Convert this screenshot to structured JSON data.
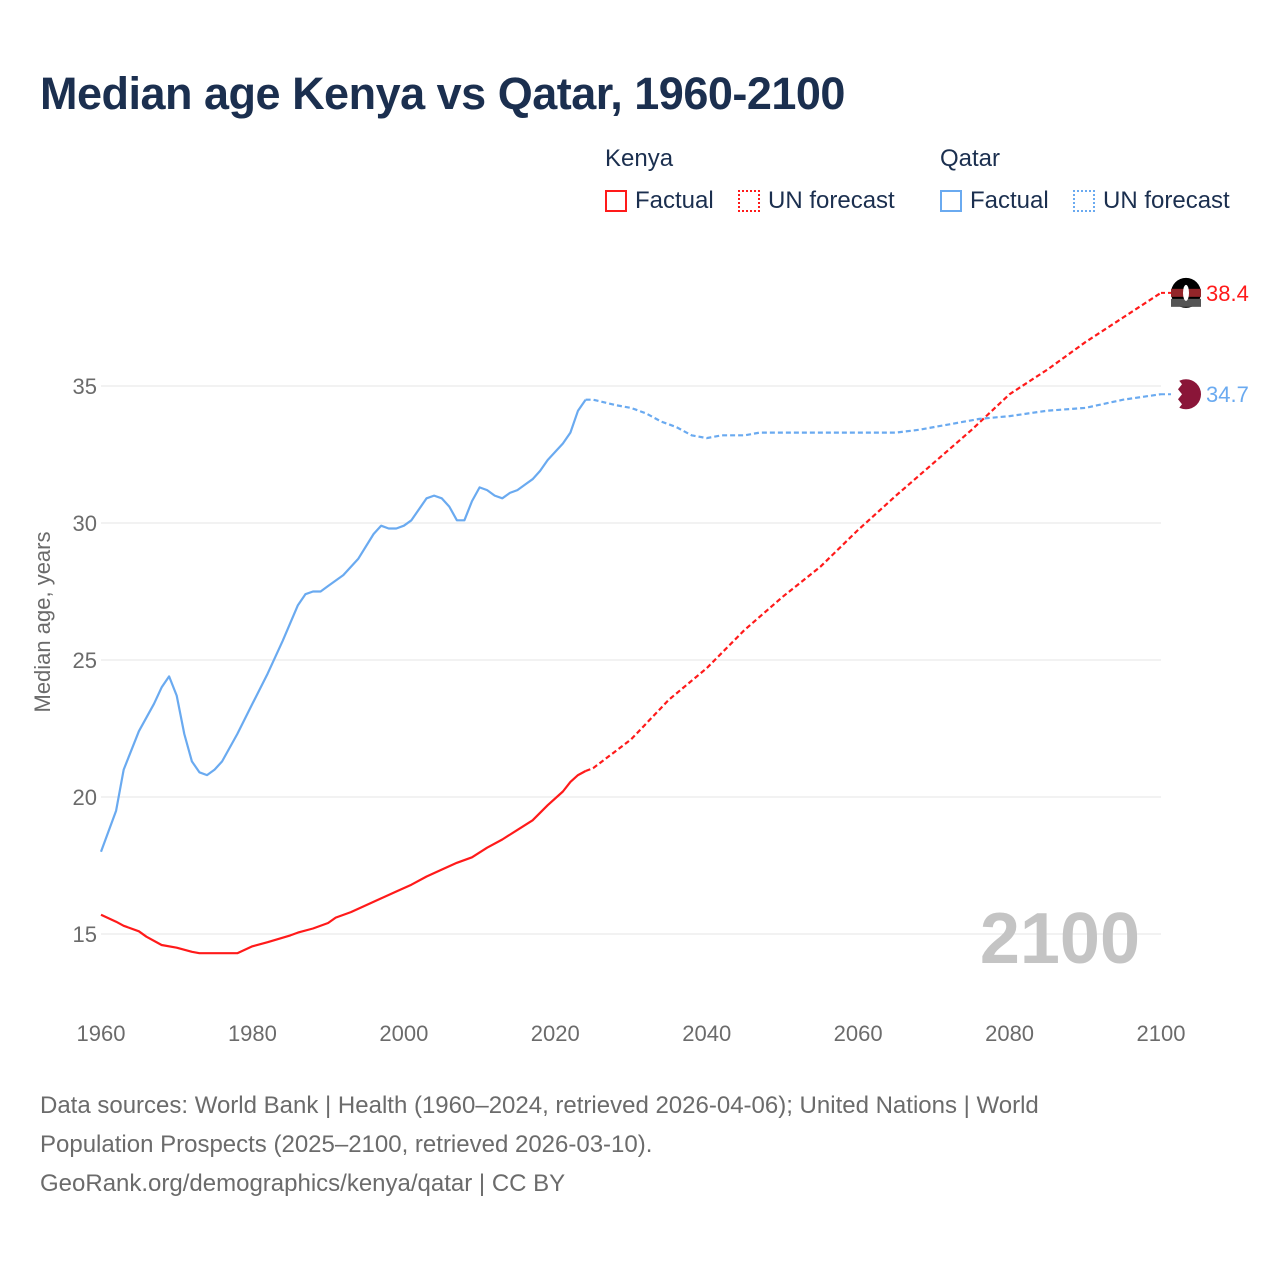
{
  "title": "Median age Kenya vs Qatar, 1960-2100",
  "legend": {
    "kenya": "Kenya",
    "qatar": "Qatar",
    "factual": "Factual",
    "forecast": "UN forecast"
  },
  "footer": {
    "line1": "Data sources: World Bank | Health (1960–2024, retrieved 2026-04-06); United Nations | World",
    "line2": "Population Prospects (2025–2100, retrieved 2026-03-10).",
    "line3": "GeoRank.org/demographics/kenya/qatar | CC BY"
  },
  "colors": {
    "kenya": "#ff1a1a",
    "qatar": "#6aaaf0",
    "title": "#1b2f4f"
  },
  "chart_data": {
    "type": "line",
    "title": "Median age Kenya vs Qatar, 1960-2100",
    "xlabel": "",
    "ylabel": "Median age, years",
    "xlim": [
      1960,
      2100
    ],
    "ylim": [
      13,
      40
    ],
    "xticks": [
      "1960",
      "1980",
      "2000",
      "2020",
      "2040",
      "2060",
      "2080",
      "2100"
    ],
    "yticks": [
      "15",
      "20",
      "25",
      "30",
      "35"
    ],
    "year_label": "2100",
    "series": [
      {
        "name": "Kenya",
        "end_label": "38.4",
        "factual": [
          [
            1960,
            15.7
          ],
          [
            1962,
            15.45
          ],
          [
            1963,
            15.3
          ],
          [
            1965,
            15.1
          ],
          [
            1966,
            14.9
          ],
          [
            1968,
            14.6
          ],
          [
            1970,
            14.5
          ],
          [
            1972,
            14.35
          ],
          [
            1973,
            14.3
          ],
          [
            1978,
            14.3
          ],
          [
            1980,
            14.55
          ],
          [
            1982,
            14.7
          ],
          [
            1985,
            14.95
          ],
          [
            1986,
            15.05
          ],
          [
            1988,
            15.2
          ],
          [
            1990,
            15.4
          ],
          [
            1991,
            15.6
          ],
          [
            1993,
            15.8
          ],
          [
            1995,
            16.05
          ],
          [
            1997,
            16.3
          ],
          [
            1999,
            16.55
          ],
          [
            2001,
            16.8
          ],
          [
            2003,
            17.1
          ],
          [
            2005,
            17.35
          ],
          [
            2007,
            17.6
          ],
          [
            2009,
            17.8
          ],
          [
            2011,
            18.15
          ],
          [
            2013,
            18.45
          ],
          [
            2015,
            18.8
          ],
          [
            2017,
            19.15
          ],
          [
            2019,
            19.7
          ],
          [
            2021,
            20.2
          ],
          [
            2022,
            20.55
          ],
          [
            2023,
            20.8
          ],
          [
            2024,
            20.95
          ]
        ],
        "forecast": [
          [
            2024,
            20.95
          ],
          [
            2025,
            21.05
          ],
          [
            2030,
            22.1
          ],
          [
            2035,
            23.55
          ],
          [
            2040,
            24.7
          ],
          [
            2045,
            26.1
          ],
          [
            2050,
            27.3
          ],
          [
            2055,
            28.4
          ],
          [
            2060,
            29.75
          ],
          [
            2065,
            31.0
          ],
          [
            2070,
            32.2
          ],
          [
            2075,
            33.4
          ],
          [
            2080,
            34.7
          ],
          [
            2085,
            35.6
          ],
          [
            2090,
            36.6
          ],
          [
            2095,
            37.5
          ],
          [
            2100,
            38.4
          ]
        ]
      },
      {
        "name": "Qatar",
        "end_label": "34.7",
        "factual": [
          [
            1960,
            18.0
          ],
          [
            1962,
            19.5
          ],
          [
            1963,
            21.0
          ],
          [
            1965,
            22.4
          ],
          [
            1967,
            23.4
          ],
          [
            1968,
            24.0
          ],
          [
            1969,
            24.4
          ],
          [
            1970,
            23.7
          ],
          [
            1971,
            22.3
          ],
          [
            1972,
            21.3
          ],
          [
            1973,
            20.9
          ],
          [
            1974,
            20.8
          ],
          [
            1975,
            21.0
          ],
          [
            1976,
            21.3
          ],
          [
            1978,
            22.3
          ],
          [
            1980,
            23.4
          ],
          [
            1982,
            24.5
          ],
          [
            1984,
            25.7
          ],
          [
            1986,
            27.0
          ],
          [
            1987,
            27.4
          ],
          [
            1988,
            27.5
          ],
          [
            1989,
            27.5
          ],
          [
            1990,
            27.7
          ],
          [
            1992,
            28.1
          ],
          [
            1994,
            28.7
          ],
          [
            1996,
            29.6
          ],
          [
            1997,
            29.9
          ],
          [
            1998,
            29.8
          ],
          [
            1999,
            29.8
          ],
          [
            2000,
            29.9
          ],
          [
            2001,
            30.1
          ],
          [
            2002,
            30.5
          ],
          [
            2003,
            30.9
          ],
          [
            2004,
            31.0
          ],
          [
            2005,
            30.9
          ],
          [
            2006,
            30.6
          ],
          [
            2007,
            30.1
          ],
          [
            2008,
            30.1
          ],
          [
            2009,
            30.8
          ],
          [
            2010,
            31.3
          ],
          [
            2011,
            31.2
          ],
          [
            2012,
            31.0
          ],
          [
            2013,
            30.9
          ],
          [
            2014,
            31.1
          ],
          [
            2015,
            31.2
          ],
          [
            2016,
            31.4
          ],
          [
            2017,
            31.6
          ],
          [
            2018,
            31.9
          ],
          [
            2019,
            32.3
          ],
          [
            2020,
            32.6
          ],
          [
            2021,
            32.9
          ],
          [
            2022,
            33.3
          ],
          [
            2023,
            34.1
          ],
          [
            2024,
            34.5
          ]
        ],
        "forecast": [
          [
            2024,
            34.5
          ],
          [
            2025,
            34.5
          ],
          [
            2028,
            34.3
          ],
          [
            2030,
            34.2
          ],
          [
            2032,
            34.0
          ],
          [
            2034,
            33.7
          ],
          [
            2036,
            33.5
          ],
          [
            2038,
            33.2
          ],
          [
            2040,
            33.1
          ],
          [
            2042,
            33.2
          ],
          [
            2045,
            33.2
          ],
          [
            2047,
            33.3
          ],
          [
            2050,
            33.3
          ],
          [
            2065,
            33.3
          ],
          [
            2068,
            33.4
          ],
          [
            2072,
            33.6
          ],
          [
            2076,
            33.8
          ],
          [
            2080,
            33.9
          ],
          [
            2085,
            34.1
          ],
          [
            2090,
            34.2
          ],
          [
            2095,
            34.5
          ],
          [
            2100,
            34.7
          ]
        ]
      }
    ]
  }
}
